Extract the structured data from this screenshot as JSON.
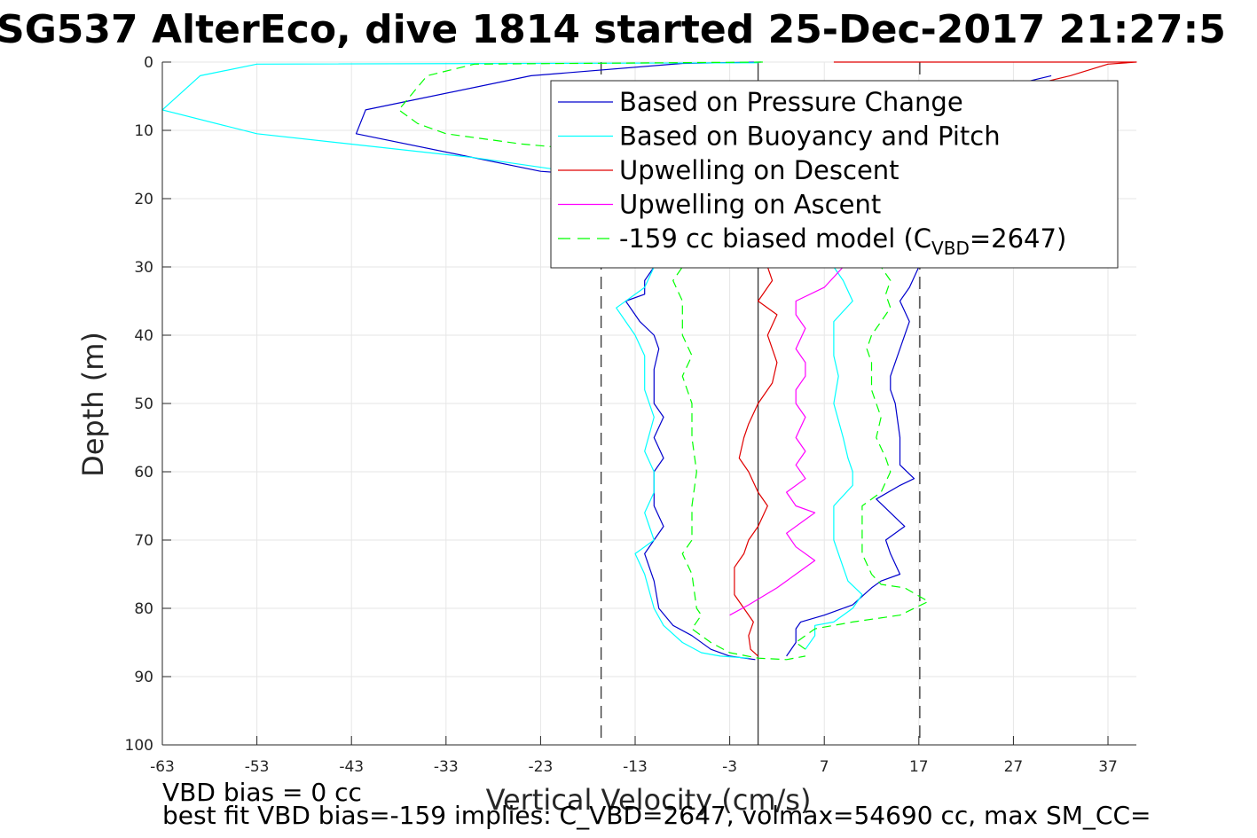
{
  "page": {
    "title": "SG537 AlterEco, dive 1814 started 25-Dec-2017 21:27:5",
    "notes": [
      "VBD bias = 0 cc",
      "best fit VBD bias=-159 implies: C_VBD=2647, volmax=54690 cc, max SM_CC="
    ]
  },
  "colors": {
    "pressure": "#0000cd",
    "buoyancy": "#00ffff",
    "descent": "#e00000",
    "ascent": "#ff00ff",
    "model": "#00ff00",
    "grid": "#e6e6e6",
    "axis": "#262626"
  },
  "chart_data": {
    "type": "line",
    "title": "SG537 AlterEco, dive 1814 started 25-Dec-2017 21:27:5",
    "xlabel": "Vertical Velocity (cm/s)",
    "ylabel": "Depth (m)",
    "xlim": [
      -63,
      40
    ],
    "ylim": [
      0,
      100
    ],
    "y_reversed": true,
    "grid": true,
    "xticks": [
      -63,
      -53,
      -43,
      -33,
      -23,
      -13,
      -3,
      7,
      17,
      27,
      37
    ],
    "yticks": [
      0,
      10,
      20,
      30,
      40,
      50,
      60,
      70,
      80,
      90,
      100
    ],
    "legend_position": "top-right",
    "legend": [
      {
        "label": "Based on Pressure Change",
        "color": "#0000cd",
        "style": "solid"
      },
      {
        "label": "Based on Buoyancy and Pitch",
        "color": "#00ffff",
        "style": "solid"
      },
      {
        "label": "Upwelling on Descent",
        "color": "#e00000",
        "style": "solid"
      },
      {
        "label": "Upwelling on Ascent",
        "color": "#ff00ff",
        "style": "solid"
      },
      {
        "label": "-159 cc biased model (C",
        "sub": "VBD",
        "suffix": "=2647)",
        "color": "#00ff00",
        "style": "dashed"
      }
    ],
    "reference_lines": [
      {
        "x": 0,
        "style": "solid"
      },
      {
        "x": -16.6,
        "style": "dashed"
      },
      {
        "x": 17.1,
        "style": "dashed"
      }
    ],
    "series": [
      {
        "key": "pressure_descent",
        "color": "#0000cd",
        "style": "solid",
        "points": [
          [
            0.3,
            0
          ],
          [
            -8,
            0.2
          ],
          [
            -24,
            2
          ],
          [
            -41.5,
            7
          ],
          [
            -42.5,
            10.5
          ],
          [
            -23,
            16
          ],
          [
            -18,
            16.5
          ],
          [
            -16,
            20
          ],
          [
            -12,
            25
          ],
          [
            -11,
            30
          ],
          [
            -12,
            32
          ],
          [
            -12,
            34
          ],
          [
            -14,
            35
          ],
          [
            -12.5,
            38
          ],
          [
            -11,
            40
          ],
          [
            -10.5,
            42
          ],
          [
            -11,
            45
          ],
          [
            -11,
            50
          ],
          [
            -10,
            52
          ],
          [
            -11,
            55
          ],
          [
            -10,
            58
          ],
          [
            -11,
            60
          ],
          [
            -11,
            65
          ],
          [
            -10,
            68
          ],
          [
            -11,
            70
          ],
          [
            -12,
            72
          ],
          [
            -11,
            76
          ],
          [
            -10.5,
            80
          ],
          [
            -9,
            82.5
          ],
          [
            -7,
            84
          ],
          [
            -5,
            86
          ],
          [
            -3,
            87
          ],
          [
            -0.3,
            87.5
          ]
        ]
      },
      {
        "key": "pressure_ascent",
        "color": "#0000cd",
        "style": "solid",
        "points": [
          [
            3,
            87
          ],
          [
            4,
            85
          ],
          [
            4,
            83
          ],
          [
            4.5,
            82
          ],
          [
            7,
            81
          ],
          [
            10,
            79.5
          ],
          [
            12,
            77
          ],
          [
            13,
            76
          ],
          [
            15,
            75
          ],
          [
            14,
            72
          ],
          [
            13.5,
            70
          ],
          [
            15.5,
            68
          ],
          [
            14,
            66
          ],
          [
            12.5,
            64
          ],
          [
            15,
            62
          ],
          [
            16.5,
            61
          ],
          [
            15,
            59
          ],
          [
            15,
            55
          ],
          [
            14.5,
            50
          ],
          [
            14,
            48
          ],
          [
            14,
            46
          ],
          [
            15,
            42
          ],
          [
            16,
            38
          ],
          [
            15,
            35
          ],
          [
            16,
            33
          ],
          [
            17,
            30
          ],
          [
            19,
            25
          ],
          [
            21,
            20
          ],
          [
            28,
            3
          ],
          [
            31,
            2
          ]
        ]
      },
      {
        "key": "buoyancy_descent",
        "color": "#00ffff",
        "style": "solid",
        "points": [
          [
            0,
            0.1
          ],
          [
            -53,
            0.3
          ],
          [
            -59,
            2
          ],
          [
            -63,
            7
          ],
          [
            -53,
            10.5
          ],
          [
            -30,
            14
          ],
          [
            -20,
            16
          ],
          [
            -15,
            20
          ],
          [
            -13,
            25
          ],
          [
            -11,
            30
          ],
          [
            -12,
            33
          ],
          [
            -15,
            36
          ],
          [
            -13,
            40
          ],
          [
            -12,
            43
          ],
          [
            -12,
            48
          ],
          [
            -11,
            52
          ],
          [
            -12,
            57
          ],
          [
            -11,
            60
          ],
          [
            -11,
            63
          ],
          [
            -12,
            66
          ],
          [
            -11,
            70
          ],
          [
            -13,
            72
          ],
          [
            -12,
            75
          ],
          [
            -11,
            80
          ],
          [
            -10,
            82.5
          ],
          [
            -8,
            85
          ],
          [
            -6,
            86.5
          ],
          [
            -4,
            87
          ],
          [
            -1,
            87.3
          ]
        ]
      },
      {
        "key": "buoyancy_ascent",
        "color": "#00ffff",
        "style": "solid",
        "points": [
          [
            5,
            86
          ],
          [
            6,
            84
          ],
          [
            6,
            82.5
          ],
          [
            8,
            82
          ],
          [
            10,
            80
          ],
          [
            11,
            78
          ],
          [
            9.5,
            76
          ],
          [
            9,
            74
          ],
          [
            8.5,
            72
          ],
          [
            8,
            70
          ],
          [
            8,
            65
          ],
          [
            10,
            62
          ],
          [
            10,
            60
          ],
          [
            9.5,
            58
          ],
          [
            9,
            55
          ],
          [
            8,
            50
          ],
          [
            8.5,
            46
          ],
          [
            8,
            43
          ],
          [
            8,
            40
          ],
          [
            8,
            38
          ],
          [
            10,
            35
          ],
          [
            9,
            32
          ],
          [
            8,
            30
          ]
        ]
      },
      {
        "key": "descent_upwelling",
        "color": "#e00000",
        "style": "solid",
        "points": [
          [
            8,
            0
          ],
          [
            40,
            0
          ],
          [
            37,
            0.3
          ],
          [
            33,
            2
          ],
          [
            30,
            3
          ],
          [
            2,
            29
          ],
          [
            1,
            30
          ],
          [
            1.5,
            32
          ],
          [
            0,
            35
          ],
          [
            2,
            37
          ],
          [
            1,
            40
          ],
          [
            2,
            44
          ],
          [
            1.5,
            47
          ],
          [
            0,
            50
          ],
          [
            -1,
            53
          ],
          [
            -1.5,
            55
          ],
          [
            -2,
            58
          ],
          [
            -1,
            60
          ],
          [
            0,
            63
          ],
          [
            1,
            65
          ],
          [
            0,
            68
          ],
          [
            -1,
            70
          ],
          [
            -1.5,
            72
          ],
          [
            -2.5,
            74
          ],
          [
            -2.5,
            78
          ],
          [
            -1.5,
            80
          ],
          [
            -0.5,
            82
          ],
          [
            -1,
            84
          ],
          [
            -0.8,
            86
          ],
          [
            0,
            87
          ]
        ]
      },
      {
        "key": "ascent_upwelling",
        "color": "#ff00ff",
        "style": "solid",
        "points": [
          [
            -3,
            81
          ],
          [
            -1,
            79.5
          ],
          [
            2,
            77
          ],
          [
            4,
            75
          ],
          [
            6,
            73
          ],
          [
            4,
            71
          ],
          [
            3,
            69
          ],
          [
            5,
            67
          ],
          [
            6,
            66
          ],
          [
            4,
            65
          ],
          [
            3,
            63
          ],
          [
            5,
            61
          ],
          [
            4,
            59
          ],
          [
            5,
            57
          ],
          [
            4,
            55
          ],
          [
            5,
            52
          ],
          [
            4,
            50
          ],
          [
            4,
            48
          ],
          [
            5,
            46
          ],
          [
            5,
            44
          ],
          [
            4,
            42
          ],
          [
            5,
            39
          ],
          [
            4,
            37
          ],
          [
            4,
            35
          ],
          [
            7,
            33
          ],
          [
            9,
            30
          ]
        ]
      },
      {
        "key": "model_descent",
        "color": "#00ff00",
        "style": "dashed",
        "points": [
          [
            0.5,
            0
          ],
          [
            -30,
            0.3
          ],
          [
            -35,
            2
          ],
          [
            -38,
            7
          ],
          [
            -36,
            9
          ],
          [
            -33,
            10.5
          ],
          [
            -25,
            12
          ],
          [
            -17,
            13
          ],
          [
            -14,
            15
          ],
          [
            -12,
            18
          ],
          [
            -10,
            25
          ],
          [
            -8,
            30
          ],
          [
            -9,
            32
          ],
          [
            -8,
            35
          ],
          [
            -8,
            40
          ],
          [
            -7,
            43
          ],
          [
            -8,
            46
          ],
          [
            -7,
            50
          ],
          [
            -7,
            55
          ],
          [
            -6.5,
            60
          ],
          [
            -7,
            65
          ],
          [
            -7,
            70
          ],
          [
            -8,
            72
          ],
          [
            -7,
            75
          ],
          [
            -6.5,
            80
          ],
          [
            -6,
            81
          ],
          [
            -7,
            83
          ],
          [
            -5,
            85
          ],
          [
            -3,
            86.5
          ],
          [
            0,
            87.3
          ],
          [
            3,
            87.5
          ],
          [
            5,
            87
          ]
        ]
      },
      {
        "key": "model_ascent",
        "color": "#00ff00",
        "style": "dashed",
        "points": [
          [
            5,
            86
          ],
          [
            4,
            85
          ],
          [
            6,
            83
          ],
          [
            10,
            82
          ],
          [
            15,
            81
          ],
          [
            18,
            79
          ],
          [
            15.5,
            77
          ],
          [
            13,
            76.5
          ],
          [
            12,
            75
          ],
          [
            11,
            72
          ],
          [
            11,
            65
          ],
          [
            13,
            63
          ],
          [
            14,
            60
          ],
          [
            13.5,
            58
          ],
          [
            12.5,
            55
          ],
          [
            13,
            52
          ],
          [
            12.5,
            50
          ],
          [
            12,
            48
          ],
          [
            12,
            44
          ],
          [
            11.5,
            42
          ],
          [
            12,
            40
          ],
          [
            13,
            38
          ],
          [
            14,
            36
          ],
          [
            13.5,
            34
          ],
          [
            14,
            32
          ],
          [
            13,
            30
          ]
        ]
      }
    ]
  }
}
